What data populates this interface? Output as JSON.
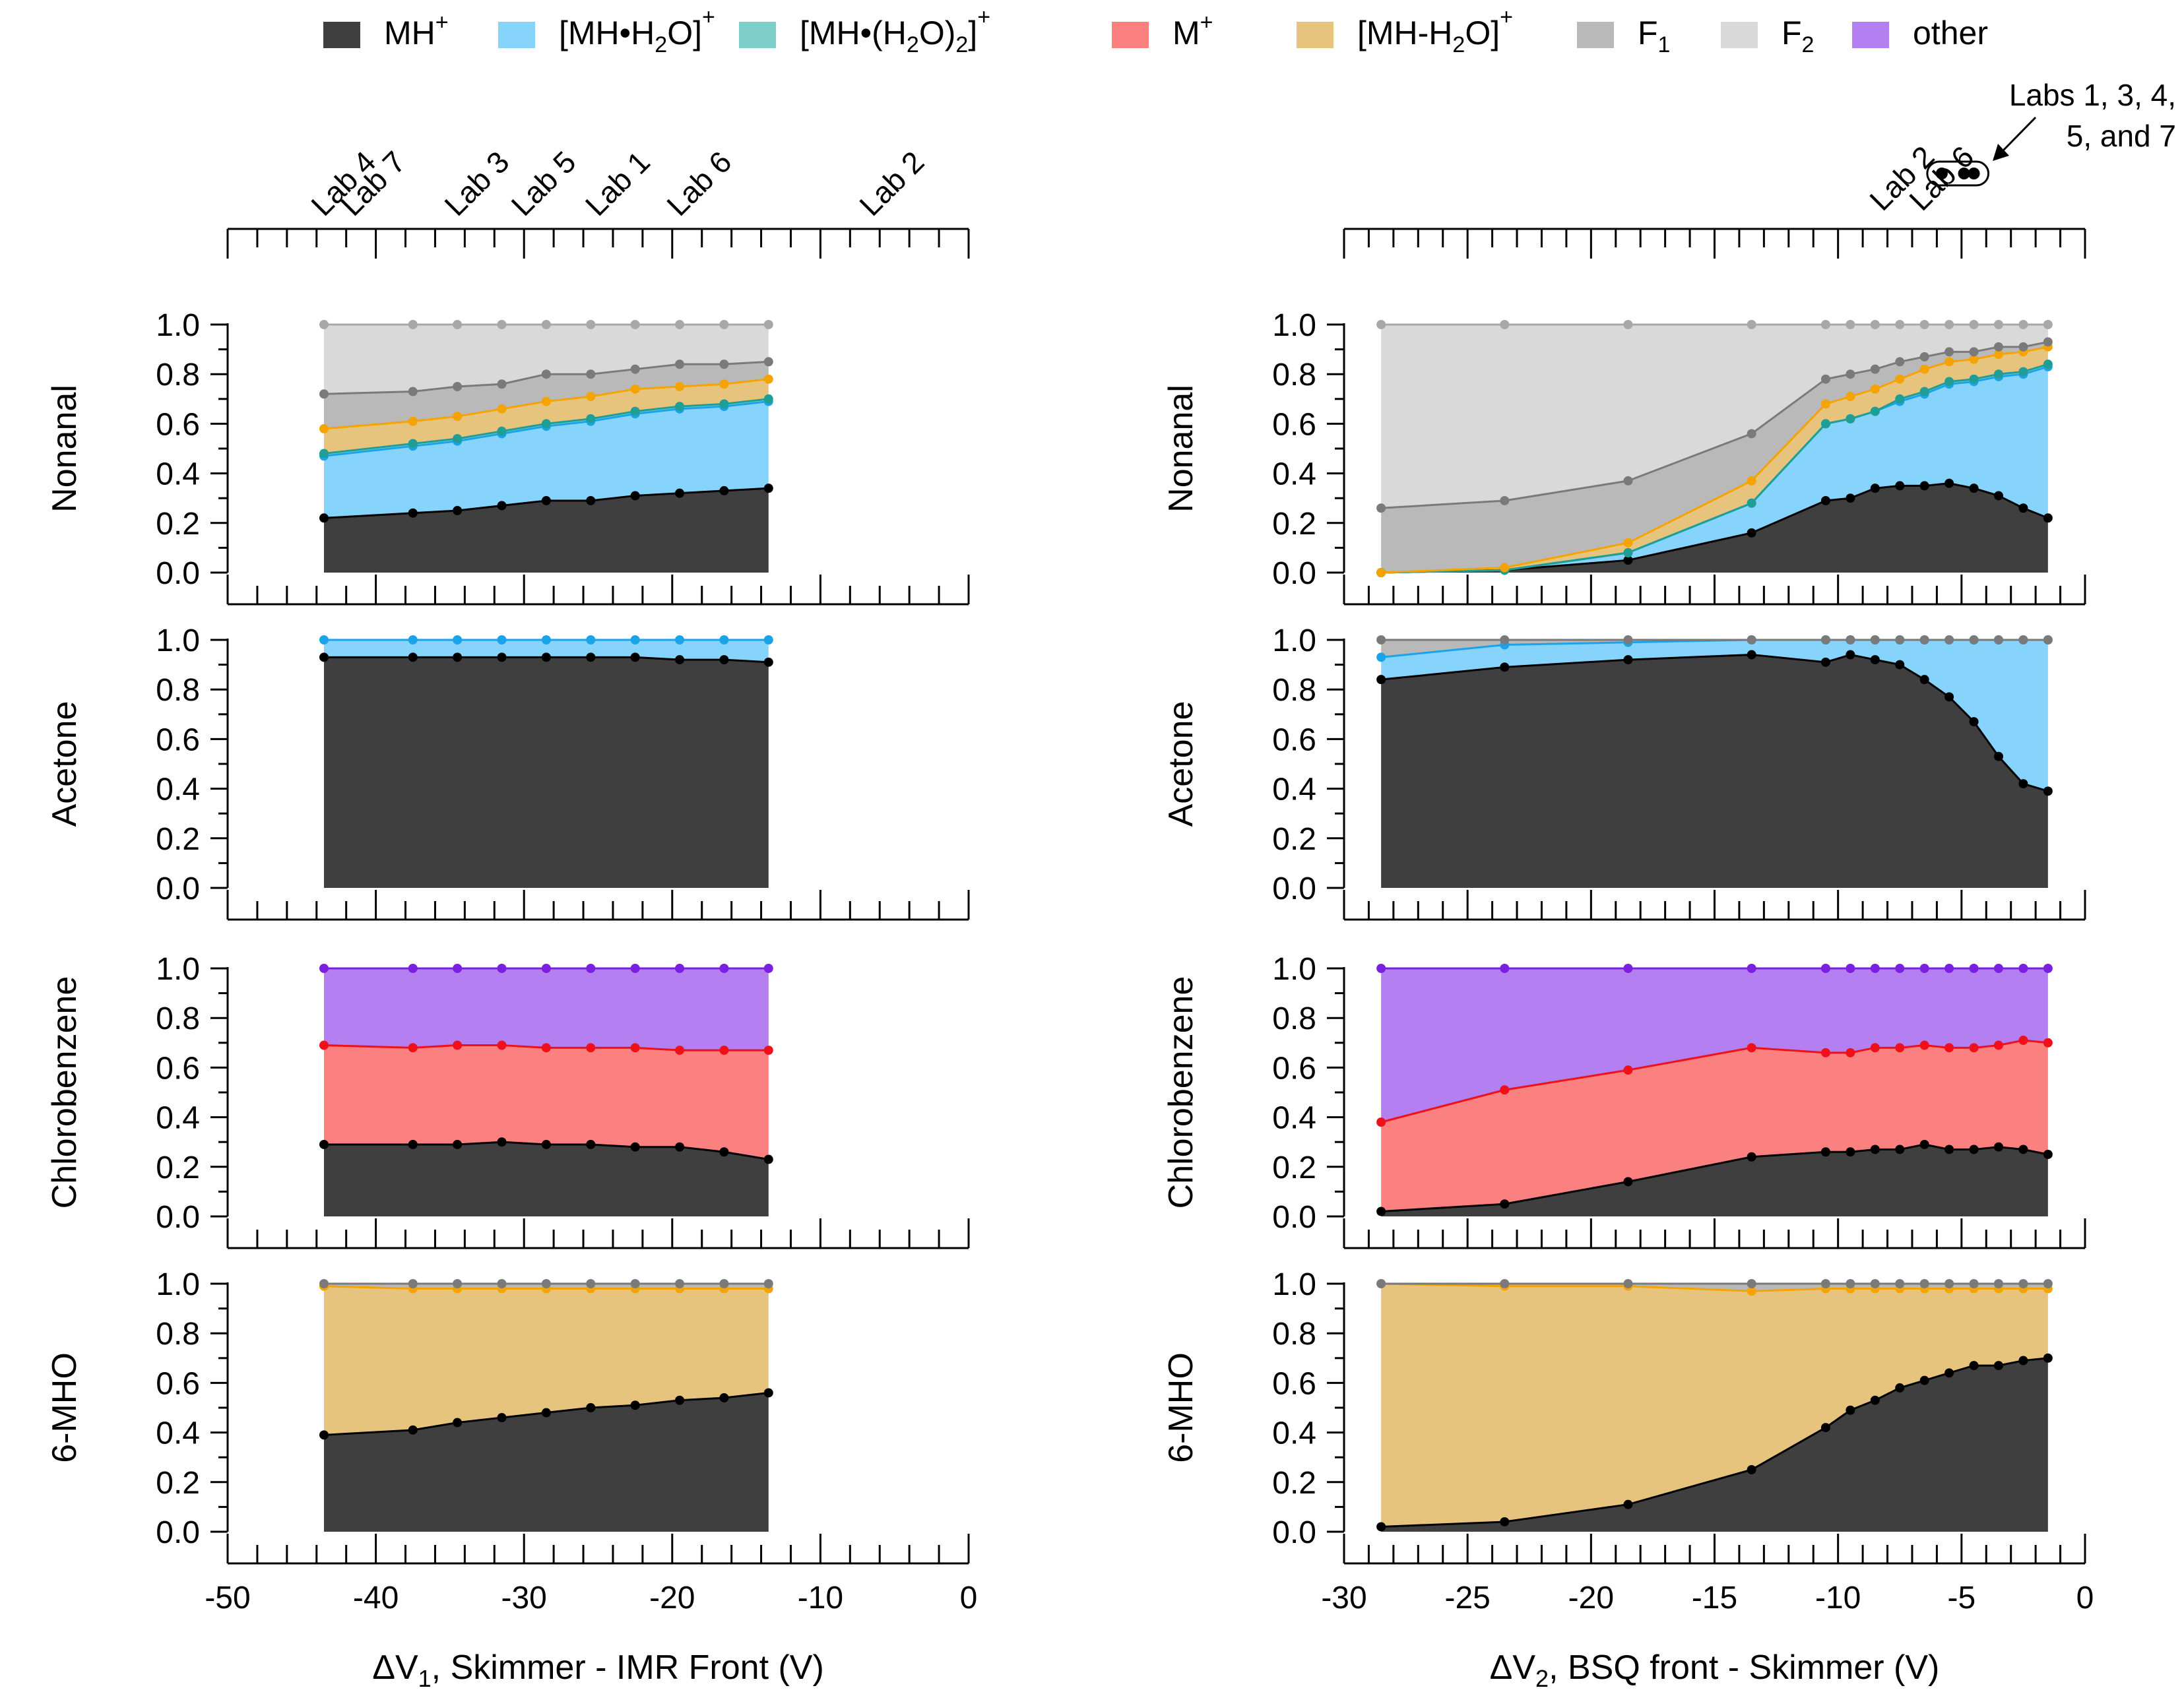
{
  "colors": {
    "MH": "#3f3f3f",
    "MH_line": "#000000",
    "H2O1": "#86d3fb",
    "H2O1_line": "#1aa3e8",
    "H2O2": "#7fcfcb",
    "H2O2_line": "#1f9e95",
    "M": "#fb8080",
    "M_line": "#f0101a",
    "MHmH2O": "#e7c47e",
    "MHmH2O_line": "#f5a300",
    "F1": "#b9b9b9",
    "F1_line": "#7a7a7a",
    "F2": "#d9d9d9",
    "F2_line": "#a8a8a8",
    "other": "#b47ff0",
    "other_line": "#7b1fe0"
  },
  "legend": [
    {
      "key": "MH",
      "text": "MH",
      "sup": "+"
    },
    {
      "key": "H2O1",
      "text": "[MH•H",
      "sub": "2",
      "text2": "O]",
      "sup": "+"
    },
    {
      "key": "H2O2",
      "text": "[MH•(H",
      "sub": "2",
      "text2": "O)",
      "sub2": "2",
      "text3": "]",
      "sup": "+"
    },
    {
      "key": "M",
      "text": "M",
      "sup": "+"
    },
    {
      "key": "MHmH2O",
      "text": "[MH-H",
      "sub": "2",
      "text2": "O]",
      "sup": "+"
    },
    {
      "key": "F1",
      "text": "F",
      "sub": "1"
    },
    {
      "key": "F2",
      "text": "F",
      "sub": "2"
    },
    {
      "key": "other",
      "text": "other"
    }
  ],
  "left_xaxis": {
    "label_prefix": "ΔV",
    "label_sub": "1",
    "label_rest": ", Skimmer - IMR Front (V)",
    "xlim": [
      -50,
      0
    ],
    "ticks": [
      "-50",
      "-40",
      "-30",
      "-20",
      "-10",
      "0"
    ]
  },
  "right_xaxis": {
    "label_prefix": "ΔV",
    "label_sub": "2",
    "label_rest": ", BSQ front - Skimmer (V)",
    "xlim": [
      -30,
      0
    ],
    "ticks": [
      "-30",
      "-25",
      "-20",
      "-15",
      "-10",
      "-5",
      "0"
    ]
  },
  "yticks": [
    "0.0",
    "0.2",
    "0.4",
    "0.6",
    "0.8",
    "1.0"
  ],
  "left_labs": [
    {
      "text": "Lab 4",
      "x": -43.5
    },
    {
      "text": "Lab 7",
      "x": -41.5
    },
    {
      "text": "Lab 3",
      "x": -34.5
    },
    {
      "text": "Lab 5",
      "x": -30.0
    },
    {
      "text": "Lab 1",
      "x": -25.0
    },
    {
      "text": "Lab 6",
      "x": -19.5
    },
    {
      "text": "Lab 2",
      "x": -6.5
    }
  ],
  "right_labs": [
    {
      "text": "Lab 2",
      "x": -8.2
    },
    {
      "text": "Lab 6",
      "x": -6.6
    }
  ],
  "right_annotation": {
    "line1": "Labs 1, 3, 4,",
    "line2": "5, and 7",
    "dots_x": [
      -5.8,
      -4.9,
      -4.5
    ]
  },
  "chart_data": [
    {
      "type": "area",
      "stacked": "cumulative",
      "side": "left",
      "row": 0,
      "ylabel": "Nonanal",
      "x": [
        -43.5,
        -37.5,
        -34.5,
        -31.5,
        -28.5,
        -25.5,
        -22.5,
        -19.5,
        -16.5,
        -13.5
      ],
      "series": [
        {
          "name": "MH",
          "values": [
            0.22,
            0.24,
            0.25,
            0.27,
            0.29,
            0.29,
            0.31,
            0.32,
            0.33,
            0.34
          ]
        },
        {
          "name": "H2O1",
          "values": [
            0.47,
            0.51,
            0.53,
            0.56,
            0.59,
            0.61,
            0.64,
            0.66,
            0.67,
            0.69
          ]
        },
        {
          "name": "H2O2",
          "values": [
            0.48,
            0.52,
            0.54,
            0.57,
            0.6,
            0.62,
            0.65,
            0.67,
            0.68,
            0.7
          ]
        },
        {
          "name": "MHmH2O",
          "values": [
            0.58,
            0.61,
            0.63,
            0.66,
            0.69,
            0.71,
            0.74,
            0.75,
            0.76,
            0.78
          ]
        },
        {
          "name": "F1",
          "values": [
            0.72,
            0.73,
            0.75,
            0.76,
            0.8,
            0.8,
            0.82,
            0.84,
            0.84,
            0.85
          ]
        },
        {
          "name": "F2",
          "values": [
            1.0,
            1.0,
            1.0,
            1.0,
            1.0,
            1.0,
            1.0,
            1.0,
            1.0,
            1.0
          ]
        }
      ]
    },
    {
      "type": "area",
      "stacked": "cumulative",
      "side": "left",
      "row": 1,
      "ylabel": "Acetone",
      "x": [
        -43.5,
        -37.5,
        -34.5,
        -31.5,
        -28.5,
        -25.5,
        -22.5,
        -19.5,
        -16.5,
        -13.5
      ],
      "series": [
        {
          "name": "MH",
          "values": [
            0.93,
            0.93,
            0.93,
            0.93,
            0.93,
            0.93,
            0.93,
            0.92,
            0.92,
            0.91
          ]
        },
        {
          "name": "H2O1",
          "values": [
            1.0,
            1.0,
            1.0,
            1.0,
            1.0,
            1.0,
            1.0,
            1.0,
            1.0,
            1.0
          ]
        }
      ]
    },
    {
      "type": "area",
      "stacked": "cumulative",
      "side": "left",
      "row": 2,
      "ylabel": "Chlorobenzene",
      "x": [
        -43.5,
        -37.5,
        -34.5,
        -31.5,
        -28.5,
        -25.5,
        -22.5,
        -19.5,
        -16.5,
        -13.5
      ],
      "series": [
        {
          "name": "MH",
          "values": [
            0.29,
            0.29,
            0.29,
            0.3,
            0.29,
            0.29,
            0.28,
            0.28,
            0.26,
            0.23
          ]
        },
        {
          "name": "M",
          "values": [
            0.69,
            0.68,
            0.69,
            0.69,
            0.68,
            0.68,
            0.68,
            0.67,
            0.67,
            0.67
          ]
        },
        {
          "name": "other",
          "values": [
            1.0,
            1.0,
            1.0,
            1.0,
            1.0,
            1.0,
            1.0,
            1.0,
            1.0,
            1.0
          ]
        }
      ]
    },
    {
      "type": "area",
      "stacked": "cumulative",
      "side": "left",
      "row": 3,
      "ylabel": "6-MHO",
      "x": [
        -43.5,
        -37.5,
        -34.5,
        -31.5,
        -28.5,
        -25.5,
        -22.5,
        -19.5,
        -16.5,
        -13.5
      ],
      "series": [
        {
          "name": "MH",
          "values": [
            0.39,
            0.41,
            0.44,
            0.46,
            0.48,
            0.5,
            0.51,
            0.53,
            0.54,
            0.56
          ]
        },
        {
          "name": "MHmH2O",
          "values": [
            0.99,
            0.98,
            0.98,
            0.98,
            0.98,
            0.98,
            0.98,
            0.98,
            0.98,
            0.98
          ]
        },
        {
          "name": "F1",
          "values": [
            1.0,
            1.0,
            1.0,
            1.0,
            1.0,
            1.0,
            1.0,
            1.0,
            1.0,
            1.0
          ]
        }
      ]
    },
    {
      "type": "area",
      "stacked": "cumulative",
      "side": "right",
      "row": 0,
      "ylabel": "Nonanal",
      "x": [
        -28.5,
        -23.5,
        -18.5,
        -13.5,
        -10.5,
        -9.5,
        -8.5,
        -7.5,
        -6.5,
        -5.5,
        -4.5,
        -3.5,
        -2.5,
        -1.5
      ],
      "series": [
        {
          "name": "MH",
          "values": [
            0.0,
            0.01,
            0.05,
            0.16,
            0.29,
            0.3,
            0.34,
            0.35,
            0.35,
            0.36,
            0.34,
            0.31,
            0.26,
            0.22
          ]
        },
        {
          "name": "H2O1",
          "values": [
            0.0,
            0.01,
            0.08,
            0.28,
            0.6,
            0.62,
            0.65,
            0.69,
            0.72,
            0.76,
            0.77,
            0.79,
            0.8,
            0.83
          ]
        },
        {
          "name": "H2O2",
          "values": [
            0.0,
            0.01,
            0.08,
            0.28,
            0.6,
            0.62,
            0.65,
            0.7,
            0.73,
            0.77,
            0.78,
            0.8,
            0.81,
            0.84
          ]
        },
        {
          "name": "MHmH2O",
          "values": [
            0.0,
            0.02,
            0.12,
            0.37,
            0.68,
            0.71,
            0.74,
            0.78,
            0.82,
            0.85,
            0.86,
            0.88,
            0.89,
            0.91
          ]
        },
        {
          "name": "F1",
          "values": [
            0.26,
            0.29,
            0.37,
            0.56,
            0.78,
            0.8,
            0.82,
            0.85,
            0.87,
            0.89,
            0.89,
            0.91,
            0.91,
            0.93
          ]
        },
        {
          "name": "F2",
          "values": [
            1.0,
            1.0,
            1.0,
            1.0,
            1.0,
            1.0,
            1.0,
            1.0,
            1.0,
            1.0,
            1.0,
            1.0,
            1.0,
            1.0
          ]
        }
      ]
    },
    {
      "type": "area",
      "stacked": "cumulative",
      "side": "right",
      "row": 1,
      "ylabel": "Acetone",
      "x": [
        -28.5,
        -23.5,
        -18.5,
        -13.5,
        -10.5,
        -9.5,
        -8.5,
        -7.5,
        -6.5,
        -5.5,
        -4.5,
        -3.5,
        -2.5,
        -1.5
      ],
      "series": [
        {
          "name": "MH",
          "values": [
            0.84,
            0.89,
            0.92,
            0.94,
            0.91,
            0.94,
            0.92,
            0.9,
            0.84,
            0.77,
            0.67,
            0.53,
            0.42,
            0.39
          ]
        },
        {
          "name": "H2O1",
          "values": [
            0.93,
            0.98,
            0.99,
            1.0,
            1.0,
            1.0,
            1.0,
            1.0,
            1.0,
            1.0,
            1.0,
            1.0,
            1.0,
            1.0
          ]
        },
        {
          "name": "F1",
          "values": [
            1.0,
            1.0,
            1.0,
            1.0,
            1.0,
            1.0,
            1.0,
            1.0,
            1.0,
            1.0,
            1.0,
            1.0,
            1.0,
            1.0
          ]
        }
      ]
    },
    {
      "type": "area",
      "stacked": "cumulative",
      "side": "right",
      "row": 2,
      "ylabel": "Chlorobenzene",
      "x": [
        -28.5,
        -23.5,
        -18.5,
        -13.5,
        -10.5,
        -9.5,
        -8.5,
        -7.5,
        -6.5,
        -5.5,
        -4.5,
        -3.5,
        -2.5,
        -1.5
      ],
      "series": [
        {
          "name": "MH",
          "values": [
            0.02,
            0.05,
            0.14,
            0.24,
            0.26,
            0.26,
            0.27,
            0.27,
            0.29,
            0.27,
            0.27,
            0.28,
            0.27,
            0.25
          ]
        },
        {
          "name": "M",
          "values": [
            0.38,
            0.51,
            0.59,
            0.68,
            0.66,
            0.66,
            0.68,
            0.68,
            0.69,
            0.68,
            0.68,
            0.69,
            0.71,
            0.7
          ]
        },
        {
          "name": "other",
          "values": [
            1.0,
            1.0,
            1.0,
            1.0,
            1.0,
            1.0,
            1.0,
            1.0,
            1.0,
            1.0,
            1.0,
            1.0,
            1.0,
            1.0
          ]
        }
      ]
    },
    {
      "type": "area",
      "stacked": "cumulative",
      "side": "right",
      "row": 3,
      "ylabel": "6-MHO",
      "x": [
        -28.5,
        -23.5,
        -18.5,
        -13.5,
        -10.5,
        -9.5,
        -8.5,
        -7.5,
        -6.5,
        -5.5,
        -4.5,
        -3.5,
        -2.5,
        -1.5
      ],
      "series": [
        {
          "name": "MH",
          "values": [
            0.02,
            0.04,
            0.11,
            0.25,
            0.42,
            0.49,
            0.53,
            0.58,
            0.61,
            0.64,
            0.67,
            0.67,
            0.69,
            0.7
          ]
        },
        {
          "name": "MHmH2O",
          "values": [
            1.0,
            0.99,
            0.99,
            0.97,
            0.98,
            0.98,
            0.98,
            0.98,
            0.98,
            0.98,
            0.98,
            0.98,
            0.98,
            0.98
          ]
        },
        {
          "name": "F1",
          "values": [
            1.0,
            1.0,
            1.0,
            1.0,
            1.0,
            1.0,
            1.0,
            1.0,
            1.0,
            1.0,
            1.0,
            1.0,
            1.0,
            1.0
          ]
        }
      ]
    }
  ]
}
